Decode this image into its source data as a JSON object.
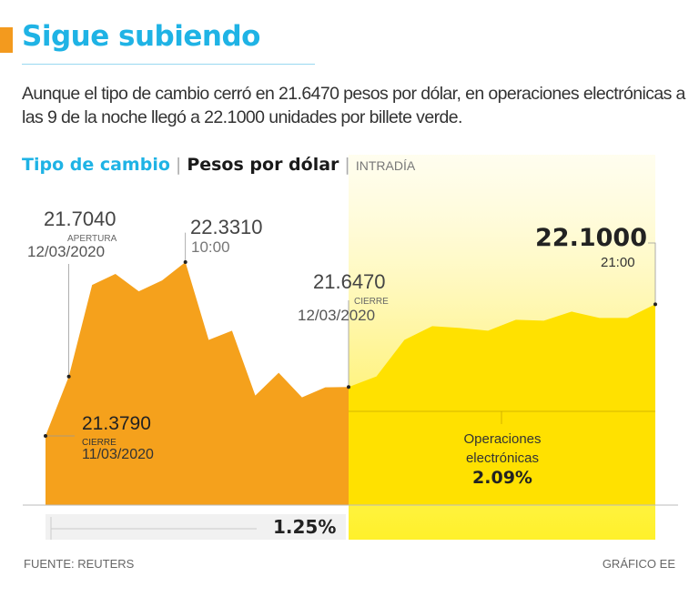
{
  "title": "Sigue subiendo",
  "subtitle": "Aunque el tipo de cambio cerró en 21.6470 pesos por dólar, en operaciones electrónicas a las 9 de la noche llegó a 22.1000 unidades por billete verde.",
  "colors": {
    "accent": "#1fb3e5",
    "regular_session": "#f5a11c",
    "electronic_session": "#ffe100",
    "highlight_band": "#fffbc8"
  },
  "chart_data": {
    "type": "area",
    "title": "Tipo de cambio",
    "subtitle": "Pesos por dólar",
    "tag": "INTRADÍA",
    "grid": false,
    "ylim": [
      21.0,
      22.4
    ],
    "series": [
      {
        "name": "",
        "segment": "regular",
        "values": [
          21.379,
          21.704,
          22.206,
          22.266,
          22.171,
          22.231,
          22.331,
          21.905,
          21.955,
          21.6,
          21.725,
          21.59,
          21.645,
          21.647
        ]
      },
      {
        "name": "Operaciones electrónicas",
        "segment": "electronic",
        "values": [
          21.647,
          21.705,
          21.905,
          21.98,
          21.97,
          21.955,
          22.015,
          22.01,
          22.06,
          22.025,
          22.025,
          22.1
        ]
      }
    ],
    "annotations": [
      {
        "value": "21.7040",
        "label": "APERTURA",
        "date": "12/03/2020"
      },
      {
        "value": "22.3310",
        "time": "10:00"
      },
      {
        "value": "21.6470",
        "label": "CIERRE",
        "date": "12/03/2020"
      },
      {
        "value": "22.1000",
        "time": "21:00"
      },
      {
        "value": "21.3790",
        "label": "CIERRE",
        "date": "11/03/2020"
      }
    ],
    "regular_change": "1.25%",
    "electronic_label": "Operaciones electrónicas",
    "electronic_change": "2.09%"
  },
  "footer": {
    "source": "FUENTE: REUTERS",
    "credit": "GRÁFICO EE"
  }
}
